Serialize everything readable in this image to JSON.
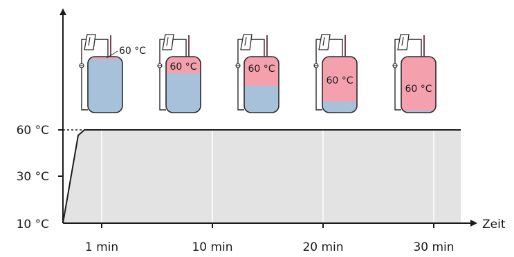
{
  "axes": {
    "y_title": "",
    "x_title": "Zeit",
    "y_ticks": [
      "60 °C",
      "30 °C",
      "10 °C"
    ],
    "x_ticks": [
      "1 min",
      "10 min",
      "20 min",
      "30 min"
    ]
  },
  "colors": {
    "hot_water": "#f4a0ad",
    "cold_water": "#a7c1da",
    "area_fill": "#e3e3e3",
    "pipe": "#6b2a3a",
    "outline": "#2a2a2a"
  },
  "tanks": [
    {
      "label": "60 °C",
      "hot_fraction": 0.04
    },
    {
      "label": "60 °C",
      "hot_fraction": 0.3
    },
    {
      "label": "60 °C",
      "hot_fraction": 0.52
    },
    {
      "label": "60 °C",
      "hot_fraction": 0.8
    },
    {
      "label": "60 °C",
      "hot_fraction": 0.96
    }
  ],
  "chart_data": {
    "type": "line",
    "xlabel": "Zeit",
    "ylabel": "",
    "x_ticks": [
      "1 min",
      "10 min",
      "20 min",
      "30 min"
    ],
    "y_ticks": [
      "10 °C",
      "30 °C",
      "60 °C"
    ],
    "series": [
      {
        "values": [
          [
            0,
            10
          ],
          [
            0.6,
            60
          ],
          [
            1,
            60
          ],
          [
            10,
            60
          ],
          [
            20,
            60
          ],
          [
            30,
            60
          ],
          [
            32,
            60
          ]
        ]
      }
    ],
    "fill_under_curve": true,
    "grid": "vertical lines at x ticks"
  }
}
